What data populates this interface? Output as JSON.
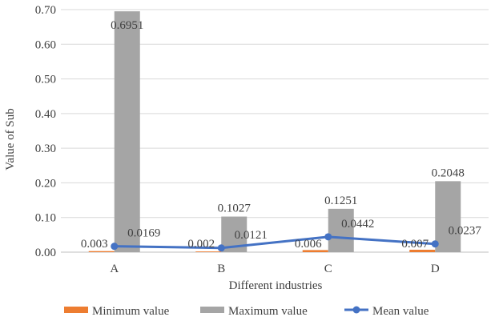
{
  "chart_data": {
    "type": "bar",
    "title": "",
    "xlabel": "Different industries",
    "ylabel": "Value of Sub",
    "categories": [
      "A",
      "B",
      "C",
      "D"
    ],
    "ylim": [
      0,
      0.7
    ],
    "yticks": [
      "0.00",
      "0.10",
      "0.20",
      "0.30",
      "0.40",
      "0.50",
      "0.60",
      "0.70"
    ],
    "grid": true,
    "legend_position": "bottom",
    "series": [
      {
        "name": "Minimum value",
        "type": "bar",
        "color": "#ED7D31",
        "values": [
          0.003,
          0.002,
          0.006,
          0.007
        ],
        "labels": [
          "0.003",
          "0.002",
          "0.006",
          "0.007"
        ]
      },
      {
        "name": "Maximum value",
        "type": "bar",
        "color": "#A5A5A5",
        "values": [
          0.6951,
          0.1027,
          0.1251,
          0.2048
        ],
        "labels": [
          "0.6951",
          "0.1027",
          "0.1251",
          "0.2048"
        ]
      },
      {
        "name": "Mean value",
        "type": "line",
        "color": "#4472C4",
        "values": [
          0.0169,
          0.0121,
          0.0442,
          0.0237
        ],
        "labels": [
          "0.0169",
          "0.0121",
          "0.0442",
          "0.0237"
        ]
      }
    ]
  }
}
